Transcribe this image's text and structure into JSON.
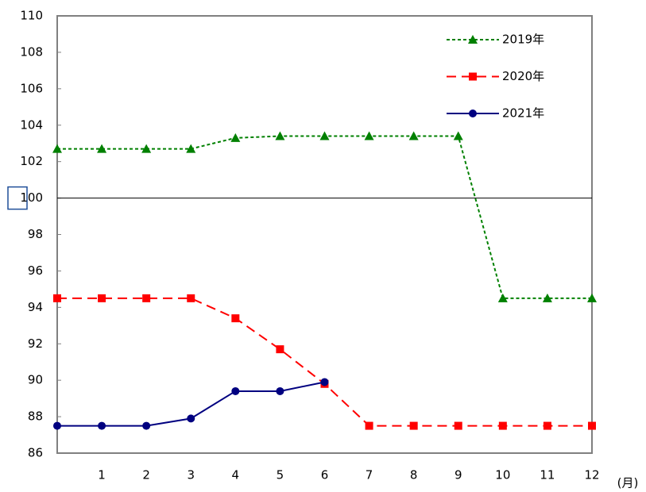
{
  "chart_data": {
    "type": "line",
    "x": [
      0,
      1,
      2,
      3,
      4,
      5,
      6,
      7,
      8,
      9,
      10,
      11,
      12
    ],
    "xlim": [
      0,
      12
    ],
    "xticks": [
      1,
      2,
      3,
      4,
      5,
      6,
      7,
      8,
      9,
      10,
      11,
      12
    ],
    "x_unit": "(月)",
    "ylim": [
      86,
      110
    ],
    "yticks": [
      86,
      88,
      90,
      92,
      94,
      96,
      98,
      100,
      102,
      104,
      106,
      108,
      110
    ],
    "reference_line": 100,
    "grid": false,
    "legend": "upper right",
    "series": [
      {
        "name": "2019年",
        "color": "#008000",
        "marker": "triangle",
        "line_style": "dotted",
        "values": [
          102.7,
          102.7,
          102.7,
          102.7,
          103.3,
          103.4,
          103.4,
          103.4,
          103.4,
          103.4,
          94.5,
          94.5,
          94.5
        ]
      },
      {
        "name": "2020年",
        "color": "#ff0000",
        "marker": "square",
        "line_style": "dashed",
        "values": [
          94.5,
          94.5,
          94.5,
          94.5,
          93.4,
          91.7,
          89.8,
          87.5,
          87.5,
          87.5,
          87.5,
          87.5,
          87.5
        ]
      },
      {
        "name": "2021年",
        "color": "#000080",
        "marker": "circle",
        "line_style": "solid",
        "values": [
          87.5,
          87.5,
          87.5,
          87.9,
          89.4,
          89.4,
          89.9,
          null,
          null,
          null,
          null,
          null,
          null
        ]
      }
    ]
  }
}
